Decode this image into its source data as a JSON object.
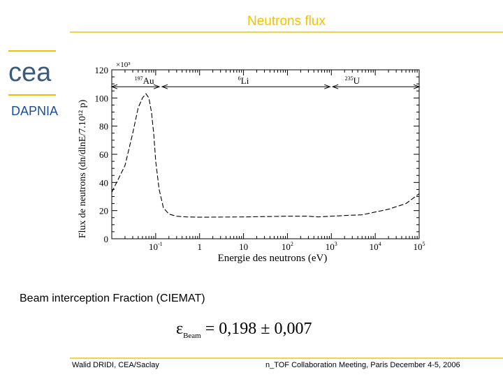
{
  "slide": {
    "title": "Neutrons flux",
    "logo_text": "cea",
    "dapnia": "DAPNIA",
    "caption": "Beam interception Fraction (CIEMAT)",
    "formula": {
      "symbol": "ε",
      "subscript": "Beam",
      "expression": "= 0,198 ± 0,007"
    },
    "footer_left": "Walid DRIDI, CEA/Saclay",
    "footer_right": "n_TOF Collaboration Meeting, Paris December 4-5, 2006",
    "colors": {
      "title": "#f2c200",
      "rule": "#f2d24a",
      "dapnia": "#1a4fa0",
      "logo": "#3a5a80"
    }
  },
  "chart_data": {
    "type": "line",
    "ylabel": "Flux de neutrons (dn/dlnE/7.10¹² p)",
    "xlabel": "Energie des neutrons (eV)",
    "y_multiplier": "×10³",
    "x_scale": "log",
    "xlim": [
      0.01,
      100000
    ],
    "ylim": [
      0,
      120
    ],
    "y_ticks": [
      "0",
      "20",
      "40",
      "60",
      "80",
      "100",
      "120"
    ],
    "x_ticks": [
      {
        "value": 0.1,
        "base": "10",
        "exp": "-1"
      },
      {
        "value": 1,
        "base": "1",
        "exp": ""
      },
      {
        "value": 10,
        "base": "10",
        "exp": ""
      },
      {
        "value": 100,
        "base": "10",
        "exp": "2"
      },
      {
        "value": 1000,
        "base": "10",
        "exp": "3"
      },
      {
        "value": 10000,
        "base": "10",
        "exp": "4"
      },
      {
        "value": 100000,
        "base": "10",
        "exp": "5"
      }
    ],
    "annotations": [
      {
        "label_sup": "197",
        "label": "Au",
        "x": 0.055
      },
      {
        "label_sup": "6",
        "label": "Li",
        "x": 10
      },
      {
        "label_sup": "235",
        "label": "U",
        "x": 3000
      }
    ],
    "ranges": {
      "y": 108,
      "from": 0.01,
      "split1": 0.13,
      "split2": 1000,
      "to": 100000
    },
    "series": [
      {
        "x": [
          0.01,
          0.02,
          0.03,
          0.04,
          0.05,
          0.06,
          0.07,
          0.08,
          0.09,
          0.1,
          0.12,
          0.15,
          0.2,
          0.3,
          0.5,
          1,
          10,
          100,
          300,
          500,
          1000,
          2000,
          5000,
          10000,
          20000,
          50000,
          100000
        ],
        "y": [
          33,
          52,
          75,
          93,
          100,
          103,
          100,
          90,
          75,
          55,
          35,
          22,
          17.5,
          16,
          15.5,
          15.3,
          15.5,
          16,
          16,
          15.5,
          16,
          16.5,
          17,
          19,
          21,
          25,
          32
        ]
      }
    ]
  }
}
